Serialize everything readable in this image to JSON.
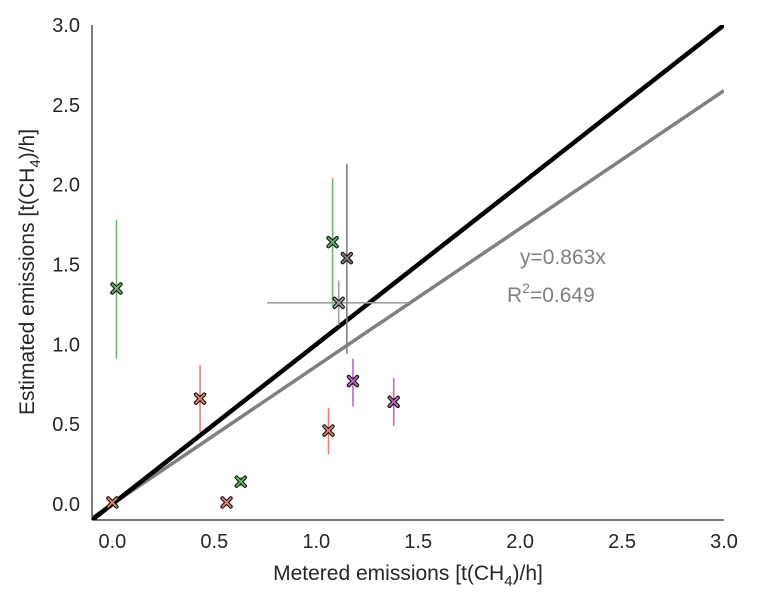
{
  "chart_data": {
    "type": "scatter",
    "title": "",
    "xlabel": {
      "prefix": "Metered emissions [t(CH",
      "sub": "4",
      "suffix": ")/h]"
    },
    "ylabel": {
      "prefix": "Estimated emissions [t(CH",
      "sub": "4",
      "suffix": ")/h]"
    },
    "xlim": [
      -0.1,
      3.0
    ],
    "ylim": [
      -0.1,
      3.0
    ],
    "xticks": [
      0.0,
      0.5,
      1.0,
      1.5,
      2.0,
      2.5,
      3.0
    ],
    "yticks": [
      0.0,
      0.5,
      1.0,
      1.5,
      2.0,
      2.5,
      3.0
    ],
    "xtick_labels": [
      "0.0",
      "0.5",
      "1.0",
      "1.5",
      "2.0",
      "2.5",
      "3.0"
    ],
    "ytick_labels": [
      "0.0",
      "0.5",
      "1.0",
      "1.5",
      "2.0",
      "2.5",
      "3.0"
    ],
    "grid": false,
    "reference_lines": [
      {
        "kind": "parity",
        "slope": 1.0,
        "color": "#000000"
      },
      {
        "kind": "fit",
        "slope": 0.863,
        "color": "#808080"
      }
    ],
    "annotation": {
      "line1": "y=0.863x",
      "line2_base": "R",
      "line2_sup": "2",
      "line2_rest": "=0.649",
      "color": "#808080"
    },
    "points": [
      {
        "x": 0.0,
        "y": 0.01,
        "yerr": [
          0.0,
          0.02
        ],
        "color": "#e8826d"
      },
      {
        "x": 0.02,
        "y": 1.35,
        "yerr": [
          0.91,
          1.78
        ],
        "color": "#6ab96a"
      },
      {
        "x": 0.43,
        "y": 0.66,
        "yerr": [
          0.45,
          0.87
        ],
        "color": "#e8826d"
      },
      {
        "x": 0.56,
        "y": 0.01,
        "yerr": [
          0.0,
          0.03
        ],
        "color": "#e8826d"
      },
      {
        "x": 0.63,
        "y": 0.14,
        "yerr": [
          0.11,
          0.17
        ],
        "color": "#6ab96a"
      },
      {
        "x": 1.06,
        "y": 0.46,
        "yerr": [
          0.31,
          0.6
        ],
        "color": "#e8826d"
      },
      {
        "x": 1.08,
        "y": 1.64,
        "yerr": [
          1.24,
          2.04
        ],
        "color": "#6ab96a"
      },
      {
        "x": 1.11,
        "y": 1.26,
        "xerr": [
          0.76,
          1.45
        ],
        "yerr": [
          1.12,
          1.4
        ],
        "color": "#a0a0a0"
      },
      {
        "x": 1.15,
        "y": 1.54,
        "yerr": [
          0.94,
          2.13
        ],
        "color": "#808080"
      },
      {
        "x": 1.18,
        "y": 0.77,
        "yerr": [
          0.61,
          0.91
        ],
        "color": "#c266c2"
      },
      {
        "x": 1.38,
        "y": 0.64,
        "yerr": [
          0.49,
          0.79
        ],
        "color": "#c266c2"
      }
    ]
  }
}
